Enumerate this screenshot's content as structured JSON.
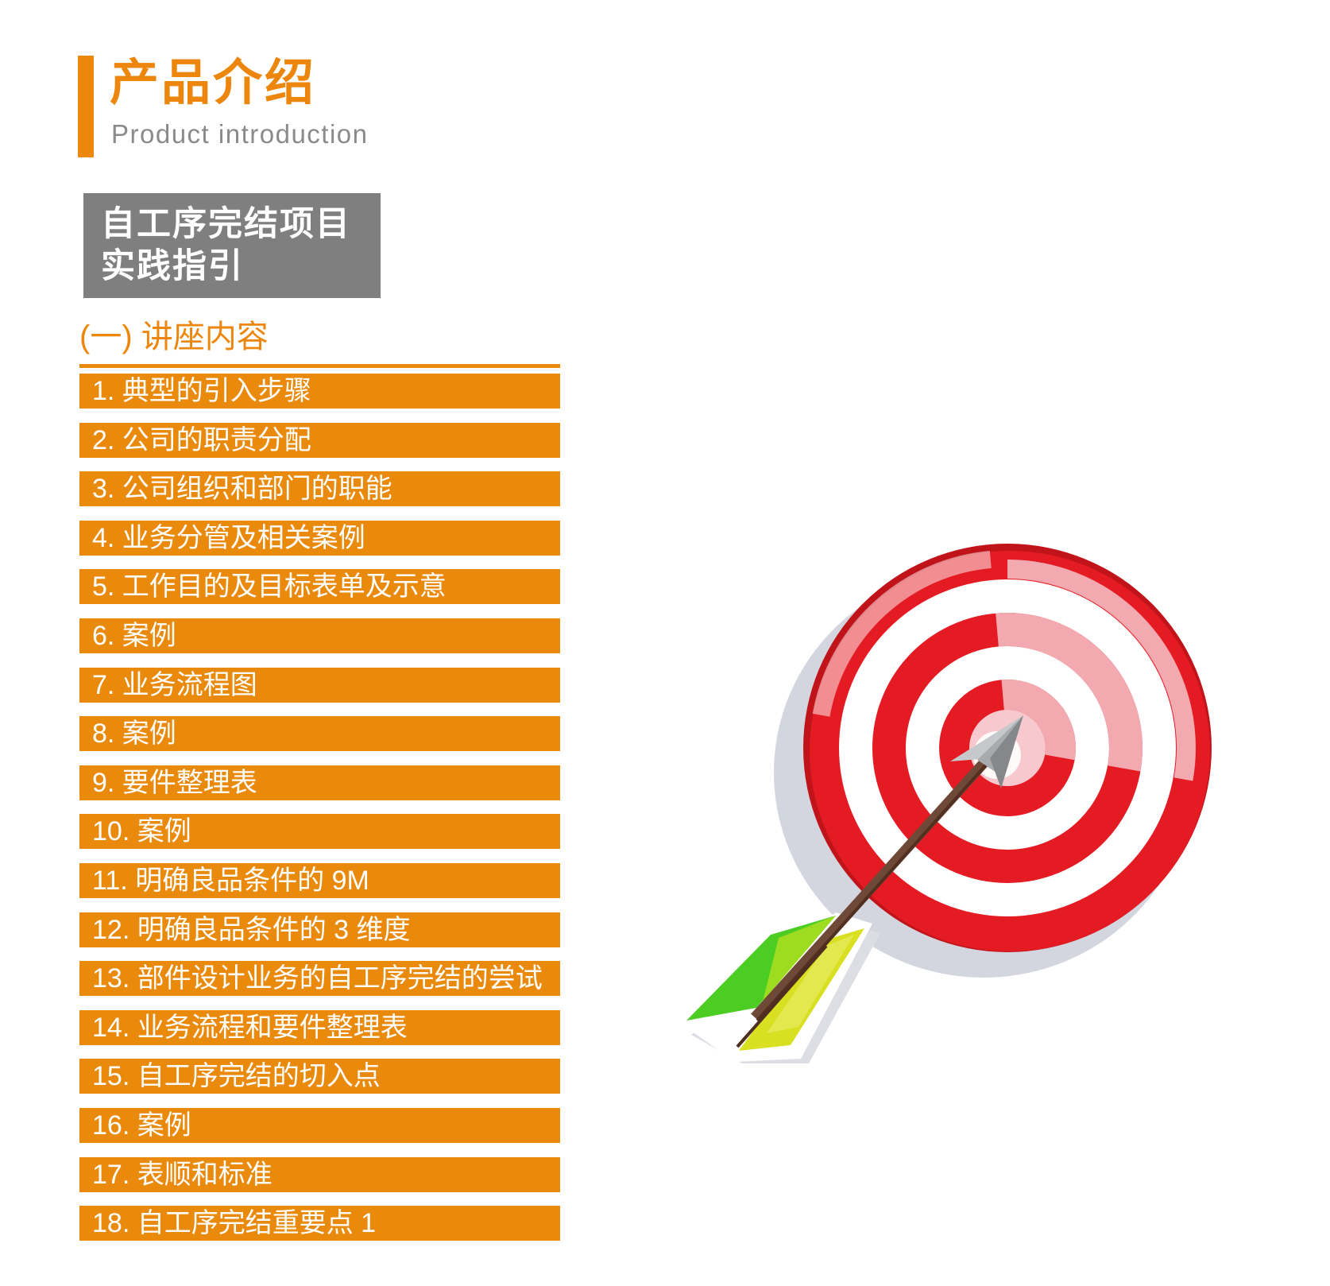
{
  "theme": {
    "accent": "#EC860C",
    "bar_bg": "#E98A0D",
    "gray_box_bg": "#7F7F7F",
    "subtitle_color": "#8A8A8A",
    "bar_text": "#FFFFFF"
  },
  "header": {
    "title": "产品介绍",
    "subtitle": "Product introduction"
  },
  "banner": {
    "line1": "自工序完结项目",
    "line2": "实践指引"
  },
  "section": {
    "heading": "(一) 讲座内容"
  },
  "lecture_list": {
    "items": [
      "1. 典型的引入步骤",
      "2. 公司的职责分配",
      "3. 公司组织和部门的职能",
      "4. 业务分管及相关案例",
      "5. 工作目的及目标表单及示意",
      "6. 案例",
      "7. 业务流程图",
      "8. 案例",
      "9. 要件整理表",
      "10. 案例",
      "11. 明确良品条件的 9M",
      "12. 明确良品条件的 3 维度",
      "13. 部件设计业务的自工序完结的尝试",
      "14. 业务流程和要件整理表",
      "15. 自工序完结的切入点",
      "16. 案例",
      "17. 表顺和标准",
      "18. 自工序完结重要点 1"
    ]
  },
  "illustration": {
    "icon": "bullseye-target-arrow-icon",
    "colors": {
      "red": "#E41B23",
      "dark_red": "#C1141A",
      "pink": "#F2A9B0",
      "light_pink": "#F7C9CE",
      "shadow": "#D4D6DF",
      "shaft_brown": "#6F4938",
      "shaft_dark": "#4E2E20",
      "arrowhead_light": "#C6C8CB",
      "arrowhead_dark": "#85878A",
      "fletch_green": "#4CCD24",
      "fletch_green_light": "#9EDC20",
      "fletch_yellow": "#D8E021"
    }
  }
}
